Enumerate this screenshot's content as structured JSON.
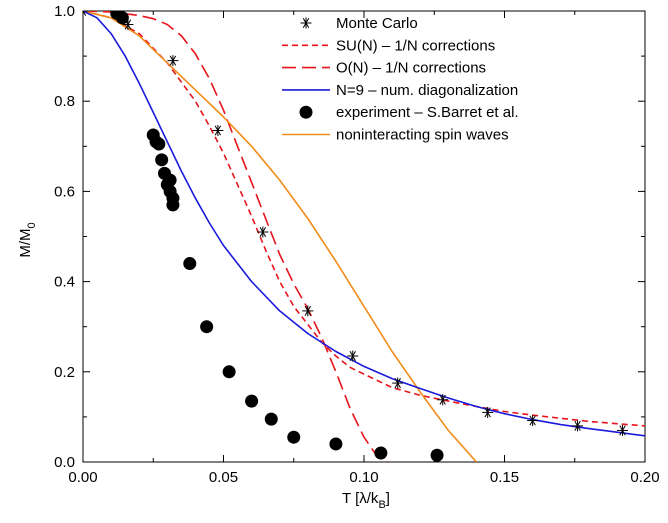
{
  "chart_data": {
    "type": "line",
    "xlabel": "T [λ/k",
    "xlabel_sub": "B",
    "xlabel_end": "]",
    "ylabel": "M/M",
    "ylabel_sub": "0",
    "xlim": [
      0.0,
      0.2
    ],
    "ylim": [
      0.0,
      1.0
    ],
    "x_ticks": [
      0.0,
      0.05,
      0.1,
      0.15,
      0.2
    ],
    "x_tick_labels": [
      "0.00",
      "0.05",
      "0.10",
      "0.15",
      "0.20"
    ],
    "y_ticks": [
      0.0,
      0.2,
      0.4,
      0.6,
      0.8,
      1.0
    ],
    "y_tick_labels": [
      "0.0",
      "0.2",
      "0.4",
      "0.6",
      "0.8",
      "1.0"
    ],
    "grid": false,
    "legend_position": "top-right",
    "series": [
      {
        "name": "Monte Carlo",
        "style": "asterisk",
        "color": "#000000",
        "x": [
          0.0,
          0.016,
          0.032,
          0.048,
          0.064,
          0.08,
          0.096,
          0.112,
          0.128,
          0.144,
          0.16,
          0.176,
          0.192
        ],
        "y": [
          1.0,
          0.97,
          0.89,
          0.735,
          0.51,
          0.335,
          0.235,
          0.175,
          0.138,
          0.11,
          0.092,
          0.08,
          0.07
        ]
      },
      {
        "name": "SU(N) – 1/N corrections",
        "style": "short-dash",
        "color": "#e8141c",
        "x": [
          0.0,
          0.01,
          0.02,
          0.03,
          0.04,
          0.045,
          0.05,
          0.055,
          0.06,
          0.065,
          0.07,
          0.075,
          0.08,
          0.085,
          0.09,
          0.095,
          0.1,
          0.11,
          0.12,
          0.13,
          0.14,
          0.15,
          0.16,
          0.17,
          0.18,
          0.19,
          0.2
        ],
        "y": [
          1.0,
          0.985,
          0.95,
          0.885,
          0.8,
          0.745,
          0.685,
          0.615,
          0.545,
          0.47,
          0.4,
          0.345,
          0.305,
          0.265,
          0.235,
          0.21,
          0.195,
          0.165,
          0.148,
          0.135,
          0.123,
          0.112,
          0.104,
          0.097,
          0.09,
          0.085,
          0.08
        ]
      },
      {
        "name": "O(N) – 1/N corrections",
        "style": "long-dash",
        "color": "#e8141c",
        "x": [
          0.0,
          0.01,
          0.02,
          0.025,
          0.03,
          0.035,
          0.04,
          0.045,
          0.05,
          0.055,
          0.06,
          0.065,
          0.07,
          0.075,
          0.08,
          0.085,
          0.09,
          0.095,
          0.1,
          0.105,
          0.108
        ],
        "y": [
          1.0,
          0.998,
          0.99,
          0.983,
          0.97,
          0.945,
          0.905,
          0.85,
          0.78,
          0.7,
          0.62,
          0.54,
          0.46,
          0.395,
          0.34,
          0.275,
          0.2,
          0.12,
          0.055,
          0.01,
          0.0
        ]
      },
      {
        "name": "N=9 – num. diagonalization",
        "style": "solid",
        "color": "#1a1adc",
        "x": [
          0.0,
          0.005,
          0.01,
          0.015,
          0.02,
          0.025,
          0.03,
          0.035,
          0.04,
          0.045,
          0.05,
          0.06,
          0.07,
          0.08,
          0.09,
          0.1,
          0.11,
          0.12,
          0.13,
          0.14,
          0.15,
          0.16,
          0.17,
          0.18,
          0.19,
          0.2
        ],
        "y": [
          1.0,
          0.985,
          0.95,
          0.9,
          0.84,
          0.775,
          0.71,
          0.645,
          0.585,
          0.53,
          0.48,
          0.4,
          0.335,
          0.285,
          0.245,
          0.212,
          0.185,
          0.163,
          0.142,
          0.123,
          0.107,
          0.094,
          0.083,
          0.074,
          0.066,
          0.058
        ]
      },
      {
        "name": "experiment – S.Barret et al.",
        "style": "dot",
        "color": "#000000",
        "x": [
          0.012,
          0.014,
          0.025,
          0.026,
          0.027,
          0.028,
          0.029,
          0.03,
          0.031,
          0.031,
          0.032,
          0.032,
          0.038,
          0.044,
          0.052,
          0.06,
          0.067,
          0.075,
          0.09,
          0.106,
          0.126
        ],
        "y": [
          0.995,
          0.985,
          0.725,
          0.71,
          0.705,
          0.67,
          0.64,
          0.615,
          0.625,
          0.6,
          0.585,
          0.57,
          0.44,
          0.3,
          0.2,
          0.135,
          0.095,
          0.055,
          0.04,
          0.02,
          0.015
        ]
      },
      {
        "name": "noninteracting spin waves",
        "style": "solid",
        "color": "#f28c1a",
        "x": [
          0.0,
          0.01,
          0.02,
          0.03,
          0.04,
          0.05,
          0.06,
          0.07,
          0.08,
          0.09,
          0.1,
          0.11,
          0.12,
          0.13,
          0.135,
          0.14
        ],
        "y": [
          1.0,
          0.985,
          0.945,
          0.885,
          0.825,
          0.765,
          0.7,
          0.625,
          0.54,
          0.445,
          0.345,
          0.245,
          0.155,
          0.07,
          0.035,
          0.0
        ]
      }
    ]
  }
}
